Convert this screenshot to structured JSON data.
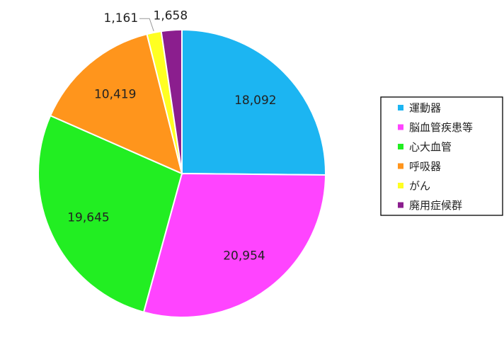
{
  "chart_data": {
    "type": "pie",
    "categories": [
      "運動器",
      "脳血管疾患等",
      "心大血管",
      "呼吸器",
      "がん",
      "廃用症候群"
    ],
    "values": [
      18092,
      20954,
      19645,
      10419,
      1161,
      1658
    ],
    "value_labels": [
      "18,092",
      "20,954",
      "19,645",
      "10,419",
      "1,161",
      "1,658"
    ],
    "colors": [
      "#1cb5f2",
      "#ff44ff",
      "#22ee22",
      "#ff951c",
      "#ffff22",
      "#8b1e8e"
    ],
    "legend": "right"
  }
}
